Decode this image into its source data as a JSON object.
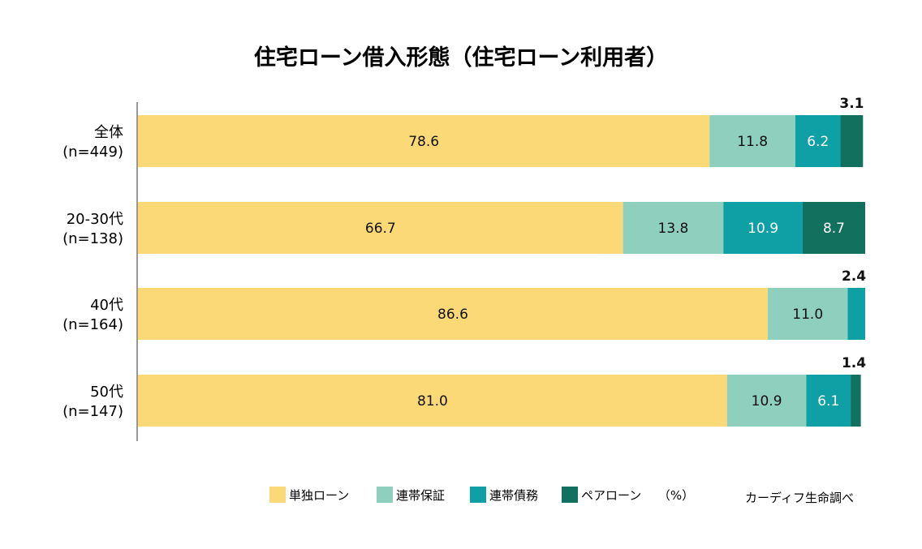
{
  "chart_data": {
    "type": "bar",
    "orientation": "horizontal",
    "stacked": true,
    "title": "住宅ローン借入形態（住宅ローン利用者）",
    "unit_label": "（%）",
    "source": "カーディフ生命調べ",
    "categories": [
      [
        "全体",
        "(n=449)"
      ],
      [
        "20-30代",
        "(n=138)"
      ],
      [
        "40代",
        "(n=164)"
      ],
      [
        "50代",
        "(n=147)"
      ]
    ],
    "series": [
      {
        "name": "単独ローン",
        "color": "#FCD977",
        "label_color": "#111111",
        "values": [
          78.6,
          66.7,
          86.6,
          81.0
        ]
      },
      {
        "name": "連帯保証",
        "color": "#8FCFBD",
        "label_color": "#111111",
        "values": [
          11.8,
          13.8,
          11.0,
          10.9
        ]
      },
      {
        "name": "連帯債務",
        "color": "#0FA0A6",
        "label_color": "#ffffff",
        "values": [
          6.2,
          10.9,
          2.4,
          6.1
        ]
      },
      {
        "name": "ペアローン",
        "color": "#12705F",
        "label_color": "#ffffff",
        "values": [
          3.1,
          8.7,
          null,
          1.4
        ]
      }
    ],
    "value_labels": [
      [
        "78.6",
        "11.8",
        "6.2",
        "3.1"
      ],
      [
        "66.7",
        "13.8",
        "10.9",
        "8.7"
      ],
      [
        "86.6",
        "11.0",
        "2.4",
        ""
      ],
      [
        "81.0",
        "10.9",
        "6.1",
        "1.4"
      ]
    ],
    "xlim": [
      0,
      100
    ],
    "grid": false,
    "legend_position": "bottom"
  }
}
